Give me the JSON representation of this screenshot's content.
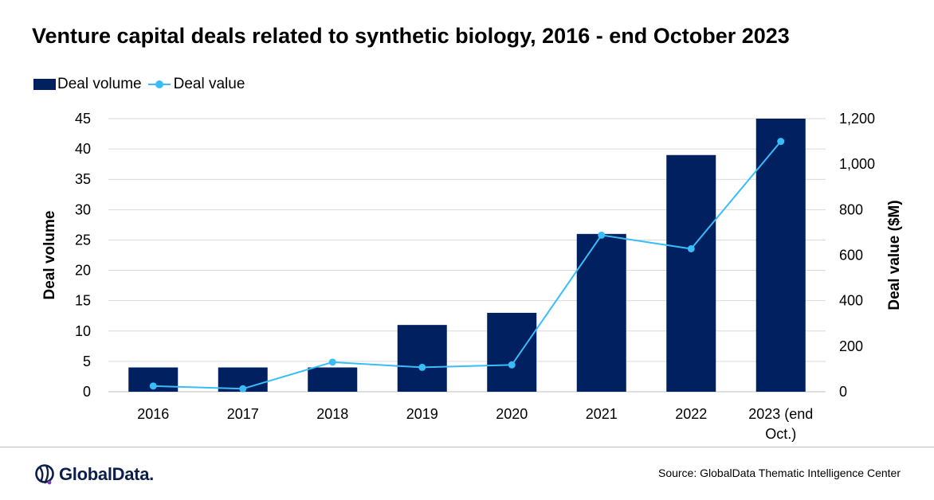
{
  "title": "Venture capital deals related to synthetic biology, 2016 - end October 2023",
  "source": "Source:  GlobalData Thematic Intelligence Center",
  "logo": {
    "text": "GlobalData.",
    "icon": "globaldata-logo-icon"
  },
  "colors": {
    "bar": "#002060",
    "line": "#38bdf8",
    "grid": "#d9d9d9"
  },
  "chart_data": {
    "type": "bar",
    "categories": [
      "2016",
      "2017",
      "2018",
      "2019",
      "2020",
      "2021",
      "2022",
      "2023 (end Oct.)"
    ],
    "category_lines": [
      [
        "2016"
      ],
      [
        "2017"
      ],
      [
        "2018"
      ],
      [
        "2019"
      ],
      [
        "2020"
      ],
      [
        "2021"
      ],
      [
        "2022"
      ],
      [
        "2023 (end",
        "Oct.)"
      ]
    ],
    "series": [
      {
        "name": "Deal volume",
        "type": "bar",
        "axis": "left",
        "values": [
          4,
          4,
          4,
          11,
          13,
          26,
          39,
          45
        ]
      },
      {
        "name": "Deal value",
        "type": "line",
        "axis": "right",
        "values": [
          25,
          13,
          130,
          107,
          118,
          688,
          628,
          1100
        ]
      }
    ],
    "ylabel": "Deal volume",
    "y2label": "Deal value ($M)",
    "ylim": [
      0,
      45
    ],
    "y2lim": [
      0,
      1200
    ],
    "yticks": [
      "0",
      "5",
      "10",
      "15",
      "20",
      "25",
      "30",
      "35",
      "40",
      "45"
    ],
    "y2ticks": [
      "0",
      "200",
      "400",
      "600",
      "800",
      "1,000",
      "1,200"
    ],
    "grid": true,
    "legend": "top-left"
  }
}
